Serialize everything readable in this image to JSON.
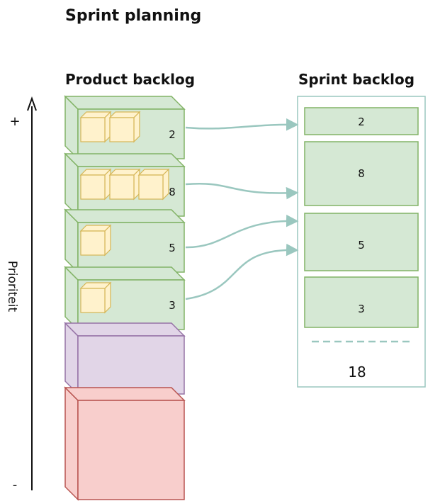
{
  "diagram": {
    "title": "Sprint planning",
    "left_heading": "Product backlog",
    "right_heading": "Sprint backlog",
    "axis": {
      "label": "Prioriteit",
      "top_mark": "+",
      "bottom_mark": "-"
    },
    "product_backlog": [
      {
        "points": "2",
        "cubes": 2,
        "color": "#d5e8d4"
      },
      {
        "points": "8",
        "cubes": 3,
        "color": "#d5e8d4"
      },
      {
        "points": "5",
        "cubes": 1,
        "color": "#d5e8d4"
      },
      {
        "points": "3",
        "cubes": 1,
        "color": "#d5e8d4"
      },
      {
        "points": "",
        "cubes": 0,
        "color": "#e1d5e7"
      },
      {
        "points": "",
        "cubes": 0,
        "color": "#f8cecc"
      }
    ],
    "sprint_backlog": [
      {
        "points": "2"
      },
      {
        "points": "8"
      },
      {
        "points": "5"
      },
      {
        "points": "3"
      }
    ],
    "sprint_total": "18",
    "colors": {
      "green_fill": "#d5e8d4",
      "green_stroke": "#82b366",
      "purple_fill": "#e1d5e7",
      "purple_stroke": "#9673a6",
      "red_fill": "#f8cecc",
      "red_stroke": "#b85450",
      "cube_fill": "#fff2cc",
      "cube_stroke": "#d6b656",
      "arrow": "#9ac7bf"
    }
  }
}
